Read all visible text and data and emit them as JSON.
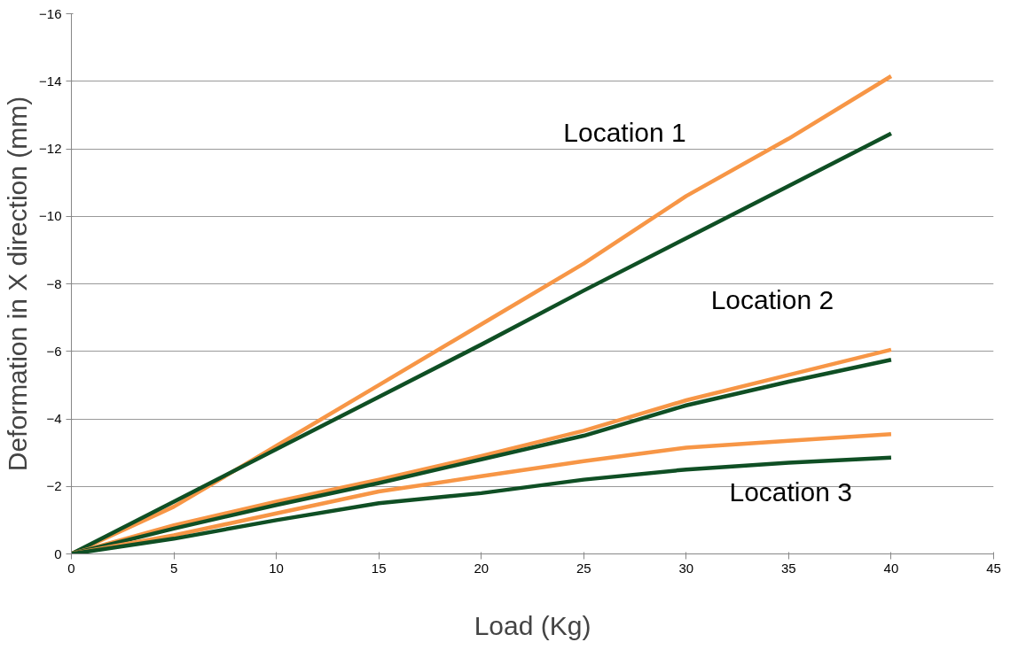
{
  "chart_data": {
    "type": "line",
    "xlabel": "Load (Kg)",
    "ylabel": "Deformation in X direction (mm)",
    "x": [
      0,
      5,
      10,
      15,
      20,
      25,
      30,
      35,
      40
    ],
    "series": [
      {
        "color": "#f79646",
        "values": [
          0,
          -1.4,
          -3.2,
          -5.0,
          -6.8,
          -8.6,
          -10.6,
          -12.3,
          -14.15
        ]
      },
      {
        "color": "#0f4f24",
        "values": [
          0,
          -1.55,
          -3.1,
          -4.65,
          -6.2,
          -7.8,
          -9.35,
          -10.9,
          -12.45
        ]
      },
      {
        "color": "#f79646",
        "values": [
          0,
          -0.85,
          -1.55,
          -2.2,
          -2.9,
          -3.65,
          -4.55,
          -5.3,
          -6.05
        ]
      },
      {
        "color": "#0f4f24",
        "values": [
          0,
          -0.75,
          -1.45,
          -2.1,
          -2.8,
          -3.5,
          -4.4,
          -5.1,
          -5.75
        ]
      },
      {
        "color": "#f79646",
        "values": [
          0,
          -0.55,
          -1.2,
          -1.85,
          -2.3,
          -2.75,
          -3.15,
          -3.35,
          -3.55
        ]
      },
      {
        "color": "#0f4f24",
        "values": [
          0,
          -0.45,
          -1.0,
          -1.5,
          -1.8,
          -2.2,
          -2.5,
          -2.7,
          -2.85
        ]
      }
    ],
    "xlim": [
      0,
      45
    ],
    "xticks": [
      0,
      5,
      10,
      15,
      20,
      25,
      30,
      35,
      40,
      45
    ],
    "ylim": [
      0,
      -16
    ],
    "yticks": [
      0,
      -2,
      -4,
      -6,
      -8,
      -10,
      -12,
      -14,
      -16
    ],
    "grid": "y",
    "line_style": "solid",
    "marker": "none",
    "annotations": [
      "Location 1",
      "Location 2",
      "Location 3"
    ]
  }
}
